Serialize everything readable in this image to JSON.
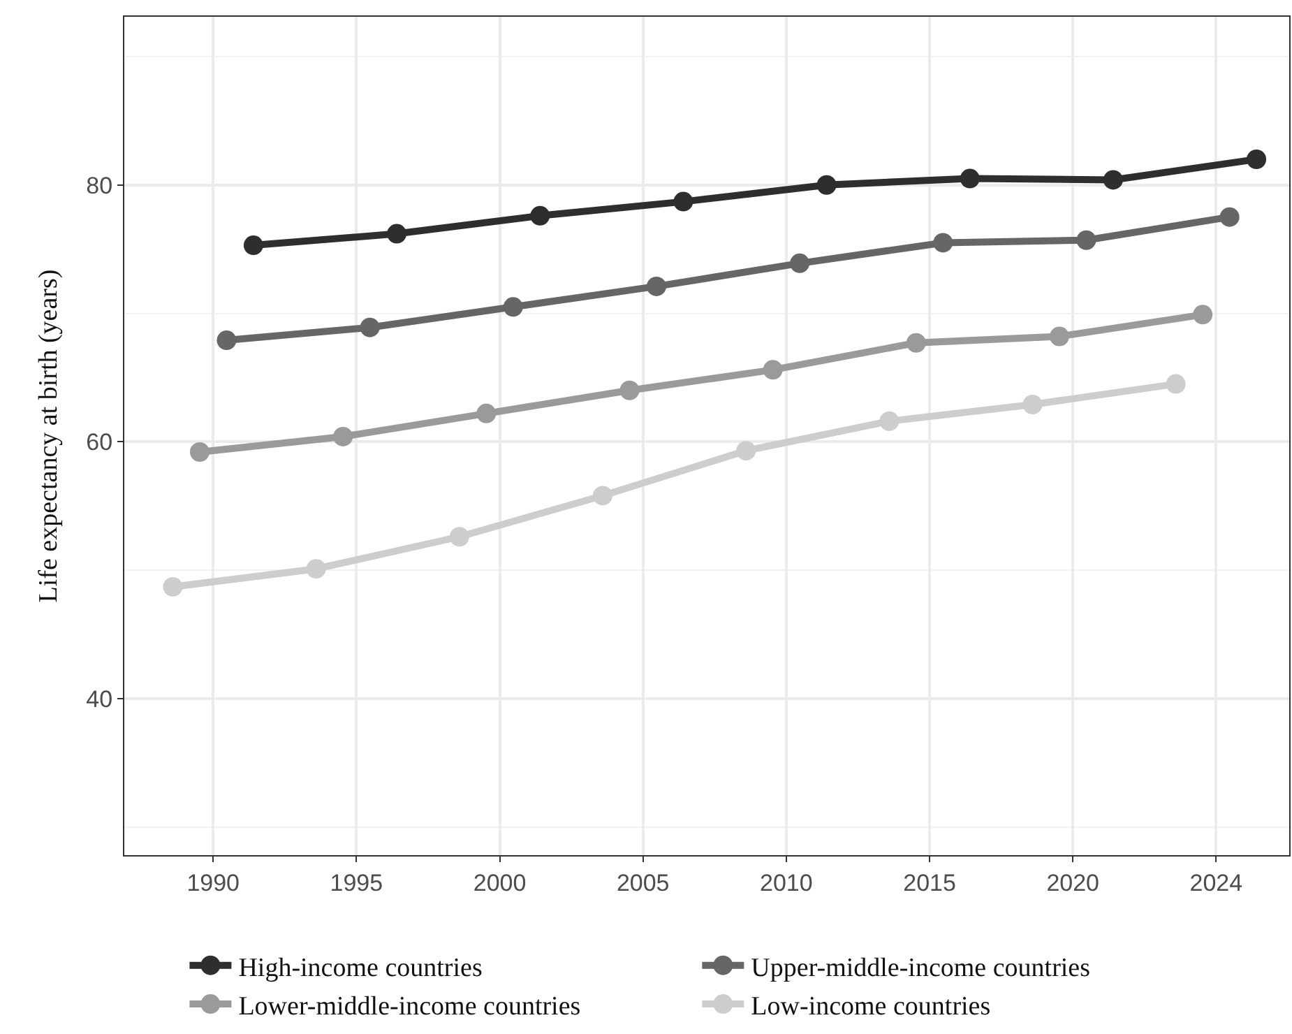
{
  "chart_data": {
    "type": "line",
    "ylabel": "Life expectancy at birth (years)",
    "categories": [
      "1990",
      "1995",
      "2000",
      "2005",
      "2010",
      "2015",
      "2020",
      "2024"
    ],
    "series": [
      {
        "name": "High-income countries",
        "color": "#2e2e2e",
        "values": [
          75.3,
          76.2,
          77.6,
          78.7,
          80.0,
          80.5,
          80.4,
          82.0
        ]
      },
      {
        "name": "Upper-middle-income countries",
        "color": "#666666",
        "values": [
          67.9,
          68.9,
          70.5,
          72.1,
          73.9,
          75.5,
          75.7,
          77.5
        ]
      },
      {
        "name": "Lower-middle-income countries",
        "color": "#9a9a9a",
        "values": [
          59.2,
          60.4,
          62.2,
          64.0,
          65.6,
          67.7,
          68.2,
          69.9
        ]
      },
      {
        "name": "Low-income countries",
        "color": "#cdcdcd",
        "values": [
          48.7,
          50.1,
          52.6,
          55.8,
          59.3,
          61.6,
          62.9,
          64.5
        ]
      }
    ],
    "ylim": [
      27.8,
      93.1
    ],
    "yticks": [
      {
        "value": 30,
        "label": null
      },
      40,
      {
        "value": 50,
        "label": null
      },
      60,
      {
        "value": 70,
        "label": null
      },
      80,
      {
        "value": 90,
        "label": null
      }
    ],
    "grid": true,
    "legend": "bottom",
    "marker": "circle",
    "line_style": "solid"
  }
}
